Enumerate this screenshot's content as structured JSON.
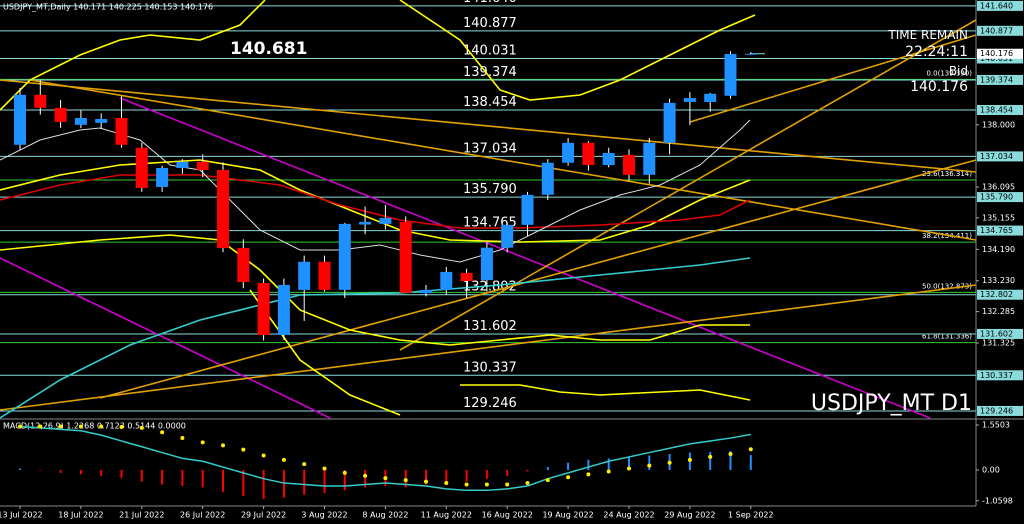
{
  "chart_data": {
    "type": "candlestick",
    "title": "USDJPY_MT,Daily  140.171 140.225 140.153 140.176",
    "watermark": "USDJPY_MT D1",
    "annotation": "140.681",
    "time_remain_label": "TIME REMAIN",
    "time_remain": "22:24:11",
    "bid_label": "Bid",
    "price": 140.176,
    "categories": [
      "13 Jul 2022",
      null,
      null,
      "18 Jul 2022",
      null,
      null,
      "21 Jul 2022",
      null,
      null,
      "26 Jul 2022",
      null,
      null,
      "29 Jul 2022",
      null,
      null,
      "3 Aug 2022",
      null,
      null,
      "8 Aug 2022",
      null,
      null,
      "11 Aug 2022",
      null,
      null,
      "16 Aug 2022",
      null,
      null,
      "19 Aug 2022",
      null,
      null,
      "24 Aug 2022",
      null,
      null,
      "29 Aug 2022",
      null,
      null,
      "1 Sep 2022"
    ],
    "open": [
      137.39,
      138.92,
      138.52,
      138.0,
      138.06,
      138.21,
      137.3,
      136.1,
      136.68,
      136.87,
      136.62,
      134.23,
      133.16,
      131.57,
      132.95,
      133.81,
      132.95,
      134.95,
      134.97,
      135.03,
      132.85,
      132.95,
      133.47,
      133.25,
      134.24,
      134.94,
      135.86,
      136.84,
      137.45,
      136.77,
      137.08,
      136.47,
      137.45,
      138.7,
      138.7,
      138.89,
      140.171
    ],
    "high": [
      139.13,
      139.38,
      138.76,
      138.45,
      138.35,
      138.88,
      137.45,
      136.75,
      136.95,
      137.1,
      136.85,
      134.5,
      133.3,
      133.3,
      134.0,
      134.0,
      135.0,
      135.5,
      135.55,
      135.2,
      133.1,
      133.65,
      133.6,
      134.4,
      135.0,
      135.95,
      136.95,
      137.6,
      137.5,
      137.3,
      137.25,
      137.6,
      138.8,
      139.0,
      138.98,
      140.25,
      140.225
    ],
    "low": [
      137.23,
      138.31,
      137.91,
      137.9,
      137.88,
      137.3,
      135.95,
      135.95,
      136.5,
      136.4,
      134.1,
      133.0,
      131.4,
      131.42,
      132.0,
      132.9,
      132.7,
      134.65,
      134.8,
      132.85,
      132.75,
      132.8,
      132.7,
      132.9,
      134.1,
      134.6,
      135.7,
      136.75,
      136.6,
      136.7,
      136.3,
      136.2,
      137.1,
      137.99,
      138.4,
      138.8,
      140.153
    ],
    "close": [
      138.92,
      138.52,
      138.09,
      138.21,
      138.18,
      137.39,
      136.07,
      136.68,
      136.87,
      136.62,
      134.23,
      133.19,
      131.57,
      133.1,
      133.81,
      132.95,
      134.97,
      135.03,
      135.15,
      132.86,
      132.95,
      133.5,
      133.22,
      134.24,
      134.94,
      135.86,
      136.84,
      137.45,
      136.77,
      137.14,
      136.47,
      137.45,
      138.67,
      138.82,
      138.95,
      140.17,
      140.176
    ],
    "up_color": "#1e90ff",
    "down_color": "#ff0000",
    "ylim": [
      129.03,
      141.82
    ],
    "yticks": [
      {
        "value": 138,
        "label": "138.000"
      },
      136.095,
      135.155,
      {
        "value": 134.19,
        "label": "134.190"
      },
      {
        "value": 133.23,
        "label": "133.230"
      },
      132.285,
      131.325
    ],
    "levels": [
      {
        "value": 141.64,
        "label": "141.640"
      },
      140.877,
      140.031,
      139.374,
      138.454,
      137.034,
      {
        "value": 135.79,
        "label": "135.790"
      },
      134.765,
      132.802,
      131.602,
      130.337,
      129.246
    ],
    "level_color": "#8adcdc",
    "fib": [
      {
        "value": 139.39,
        "label": "0.0(139.390)"
      },
      {
        "value": 136.314,
        "label": "23.6(136.314)"
      },
      {
        "value": 134.411,
        "label": "38.2(134.411)"
      },
      {
        "value": 132.873,
        "label": "50.0(132.873)"
      },
      {
        "value": 131.336,
        "label": "61.8(131.336)"
      }
    ],
    "fib_color": "#33cc33",
    "macd": {
      "title": "MACD(12,26,9) 1.2268 0.7123 0.5144 0.0000",
      "ylim": [
        -1.206,
        1.722
      ],
      "yticks": [
        1.5503,
        {
          "value": 0,
          "label": "0.00"
        },
        -1.0598
      ],
      "histogram": [
        0.05,
        -0.02,
        -0.1,
        -0.15,
        -0.2,
        -0.28,
        -0.4,
        -0.5,
        -0.55,
        -0.6,
        -0.75,
        -0.9,
        -1.0,
        -0.95,
        -0.85,
        -0.8,
        -0.7,
        -0.6,
        -0.55,
        -0.6,
        -0.5,
        -0.45,
        -0.4,
        -0.3,
        -0.2,
        -0.05,
        0.1,
        0.25,
        0.35,
        0.4,
        0.45,
        0.5,
        0.55,
        0.6,
        0.62,
        0.65,
        0.5144
      ],
      "main": [
        1.5,
        1.45,
        1.4,
        1.35,
        1.2,
        1.0,
        0.8,
        0.6,
        0.4,
        0.3,
        0.1,
        -0.1,
        -0.3,
        -0.45,
        -0.5,
        -0.55,
        -0.55,
        -0.5,
        -0.45,
        -0.5,
        -0.55,
        -0.65,
        -0.7,
        -0.7,
        -0.65,
        -0.55,
        -0.3,
        -0.1,
        0.1,
        0.3,
        0.45,
        0.6,
        0.75,
        0.9,
        1.0,
        1.1,
        1.2268
      ],
      "signal": [
        1.5,
        1.5,
        1.5,
        1.5,
        1.5,
        1.48,
        1.45,
        1.3,
        1.1,
        0.95,
        0.85,
        0.7,
        0.5,
        0.35,
        0.2,
        0.05,
        -0.1,
        -0.2,
        -0.28,
        -0.35,
        -0.4,
        -0.45,
        -0.5,
        -0.5,
        -0.5,
        -0.45,
        -0.35,
        -0.25,
        -0.15,
        -0.05,
        0.05,
        0.15,
        0.25,
        0.35,
        0.45,
        0.55,
        0.7123
      ],
      "main_color": "#33cccc",
      "signal_color": "#ffee00",
      "up_color": "#1e90ff",
      "down_color": "#ff0000"
    }
  }
}
